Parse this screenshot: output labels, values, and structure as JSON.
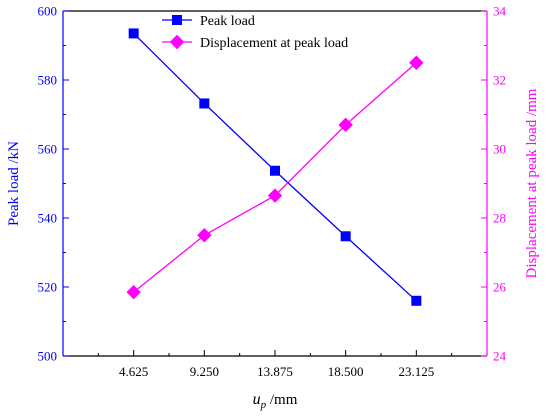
{
  "chart_data": {
    "type": "line",
    "x_label_italic": "u",
    "x_label_sub": "p",
    "x_label_rest": " /mm",
    "categories": [
      "4.625",
      "9.250",
      "13.875",
      "18.500",
      "23.125"
    ],
    "x": [
      4.625,
      9.25,
      13.875,
      18.5,
      23.125
    ],
    "xlim": [
      0,
      27.75
    ],
    "y_left": {
      "label": "Peak load /kN",
      "ylim": [
        500,
        600
      ],
      "ticks": [
        500,
        520,
        540,
        560,
        580,
        600
      ],
      "color": "#0000ff"
    },
    "y_right": {
      "label": "Displacement at peak load /mm",
      "ylim": [
        24,
        34
      ],
      "ticks": [
        24,
        26,
        28,
        30,
        32,
        34
      ],
      "color": "#ff00ff"
    },
    "series": [
      {
        "name": "Peak load",
        "axis": "left",
        "marker": "square",
        "color": "#0000ff",
        "values": [
          593.5,
          573.2,
          553.7,
          534.7,
          516.0
        ]
      },
      {
        "name": "Displacement at peak load",
        "axis": "right",
        "marker": "diamond",
        "color": "#ff00ff",
        "values": [
          25.85,
          27.5,
          28.65,
          30.7,
          32.5
        ]
      }
    ],
    "legend_position": "top-center",
    "grid": false
  }
}
